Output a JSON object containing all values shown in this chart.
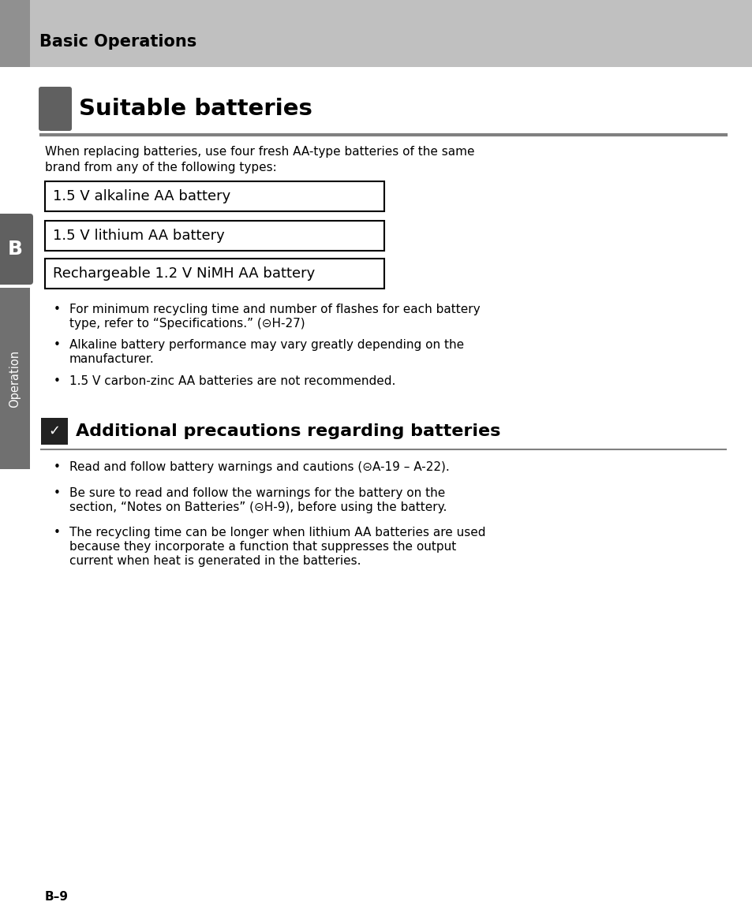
{
  "page_bg": "#ffffff",
  "header_bg": "#c0c0c0",
  "header_accent_bg": "#909090",
  "header_text": "Basic Operations",
  "header_text_color": "#000000",
  "section1_icon_color": "#606060",
  "section1_title": "Suitable batteries",
  "section_underline_color": "#808080",
  "intro_text_line1": "When replacing batteries, use four fresh AA-type batteries of the same",
  "intro_text_line2": "brand from any of the following types:",
  "battery_boxes": [
    "1.5 V alkaline AA battery",
    "1.5 V lithium AA battery",
    "Rechargeable 1.2 V NiMH AA battery"
  ],
  "battery_box_border": "#000000",
  "battery_box_bg": "#ffffff",
  "bullet_points_section1": [
    [
      "For minimum recycling time and number of flashes for each battery",
      "type, refer to “Specifications.” (⊝H-27)"
    ],
    [
      "Alkaline battery performance may vary greatly depending on the",
      "manufacturer."
    ],
    [
      "1.5 V carbon-zinc AA batteries are not recommended."
    ]
  ],
  "section2_title": "Additional precautions regarding batteries",
  "section2_underline_color": "#808080",
  "bullet_points_section2": [
    [
      "Read and follow battery warnings and cautions (⊝A-19 – A-22)."
    ],
    [
      "Be sure to read and follow the warnings for the battery on the",
      "section, “Notes on Batteries” (⊝H-9), before using the battery."
    ],
    [
      "The recycling time can be longer when lithium AA batteries are used",
      "because they incorporate a function that suppresses the output",
      "current when heat is generated in the batteries."
    ]
  ],
  "sidebar_b_color": "#606060",
  "sidebar_op_color": "#707070",
  "sidebar_label": "Operation",
  "page_number": "B–9"
}
